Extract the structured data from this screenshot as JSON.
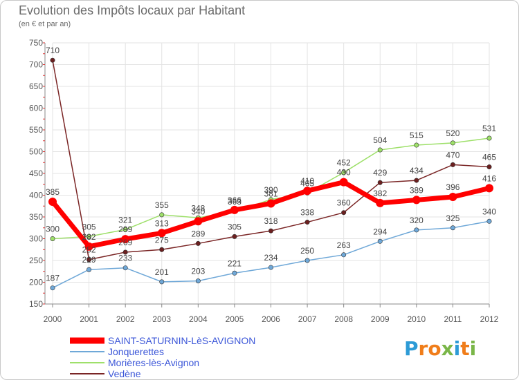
{
  "header": {
    "title": "Evolution des Impôts locaux par Habitant",
    "subtitle": "(en € et par an)"
  },
  "legend": {
    "items": [
      {
        "label": "SAINT-SATURNIN-LèS-AVIGNON",
        "color": "#ff0000"
      },
      {
        "label": "Jonquerettes",
        "color": "#6fa8d8"
      },
      {
        "label": "Morières-lès-Avignon",
        "color": "#9ee06a"
      },
      {
        "label": "Vedène",
        "color": "#7a2525"
      }
    ]
  },
  "logo": {
    "text": "Proxiti",
    "letters": [
      {
        "ch": "P",
        "color": "#2d9bd6"
      },
      {
        "ch": "r",
        "color": "#f07d1a"
      },
      {
        "ch": "o",
        "color": "#f07d1a"
      },
      {
        "ch": "x",
        "color": "#7ab648"
      },
      {
        "ch": "i",
        "color": "#2d9bd6"
      },
      {
        "ch": "t",
        "color": "#f07d1a"
      },
      {
        "ch": "i",
        "color": "#7ab648"
      }
    ]
  },
  "chart_data": {
    "type": "line",
    "title": "Evolution des Impôts locaux par Habitant",
    "subtitle": "(en € et par an)",
    "categories": [
      "2000",
      "2001",
      "2002",
      "2003",
      "2004",
      "2005",
      "2006",
      "2007",
      "2008",
      "2009",
      "2010",
      "2011",
      "2012"
    ],
    "ylim": [
      150,
      750
    ],
    "yticks": [
      150,
      200,
      250,
      300,
      350,
      400,
      450,
      500,
      550,
      600,
      650,
      700,
      750
    ],
    "grid": true,
    "legend_position": "bottom",
    "series": [
      {
        "name": "Jonquerettes",
        "color": "#6fa8d8",
        "marker_fill": "#6fa8d8",
        "values": [
          187,
          229,
          233,
          201,
          203,
          221,
          234,
          250,
          263,
          294,
          320,
          325,
          340
        ]
      },
      {
        "name": "Morières-lès-Avignon",
        "color": "#9ee06a",
        "marker_fill": "#9ee06a",
        "values": [
          300,
          305,
          321,
          355,
          348,
          363,
          390,
          405,
          452,
          504,
          515,
          520,
          531
        ]
      },
      {
        "name": "Vedène",
        "color": "#7a2525",
        "marker_fill": "#6b1f1f",
        "values": [
          710,
          252,
          269,
          275,
          289,
          305,
          318,
          338,
          360,
          429,
          434,
          470,
          465
        ]
      },
      {
        "name": "SAINT-SATURNIN-LèS-AVIGNON",
        "color": "#ff0000",
        "marker_fill": "#ff0000",
        "values": [
          385,
          282,
          299,
          313,
          340,
          366,
          381,
          410,
          430,
          382,
          389,
          396,
          416
        ]
      }
    ]
  }
}
